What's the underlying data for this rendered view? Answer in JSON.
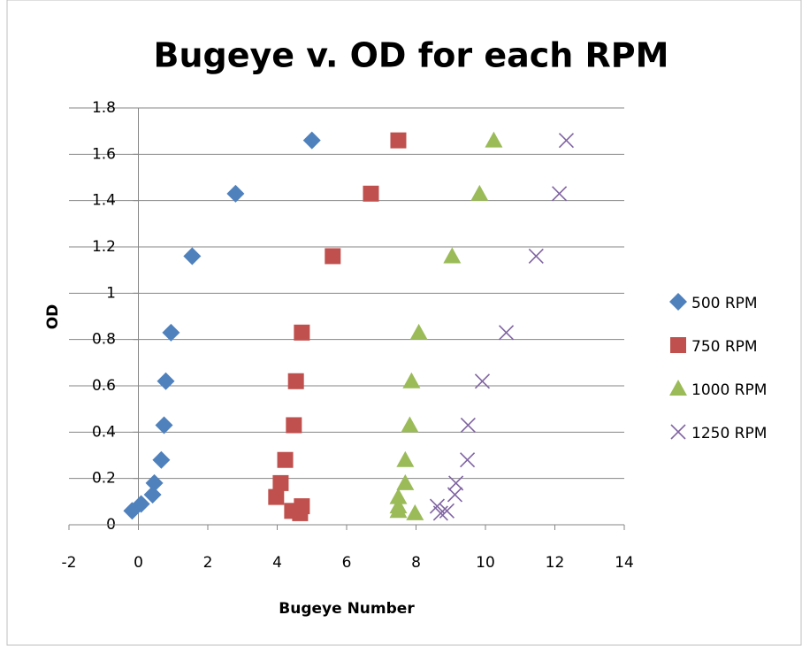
{
  "chart_data": {
    "type": "scatter",
    "title": "Bugeye v. OD for each RPM",
    "x_label": "Bugeye Number",
    "y_label": "OD",
    "xlim": [
      -2,
      14
    ],
    "xticks": [
      -2,
      0,
      2,
      4,
      6,
      8,
      10,
      12,
      14
    ],
    "ylim": [
      0,
      1.8
    ],
    "yticks": [
      0,
      0.2,
      0.4,
      0.6,
      0.8,
      1,
      1.2,
      1.4,
      1.6,
      1.8
    ],
    "grid": true,
    "legend": "right",
    "series": [
      {
        "name": "500 RPM",
        "color": "#4f81bd",
        "marker": "diamond",
        "x": [
          5.0,
          2.8,
          1.55,
          0.94,
          0.79,
          0.74,
          0.66,
          0.46,
          0.41,
          0.08,
          -0.18
        ],
        "values": [
          1.66,
          1.43,
          1.16,
          0.83,
          0.62,
          0.43,
          0.28,
          0.18,
          0.13,
          0.09,
          0.06
        ]
      },
      {
        "name": "750 RPM",
        "color": "#c0504d",
        "marker": "square",
        "x": [
          7.49,
          6.7,
          5.6,
          4.71,
          4.54,
          4.48,
          4.23,
          4.1,
          3.97,
          4.43,
          4.71,
          4.66
        ],
        "values": [
          1.66,
          1.43,
          1.16,
          0.83,
          0.62,
          0.43,
          0.28,
          0.18,
          0.12,
          0.06,
          0.08,
          0.05
        ]
      },
      {
        "name": "1000 RPM",
        "color": "#9bbb59",
        "marker": "triangle",
        "x": [
          10.24,
          9.83,
          9.04,
          8.08,
          7.87,
          7.82,
          7.69,
          7.69,
          7.49,
          7.49,
          7.49,
          7.97
        ],
        "values": [
          1.66,
          1.43,
          1.16,
          0.83,
          0.62,
          0.43,
          0.28,
          0.18,
          0.12,
          0.08,
          0.06,
          0.05
        ]
      },
      {
        "name": "1250 RPM",
        "color": "#8064a2",
        "marker": "x",
        "x": [
          12.33,
          12.13,
          11.46,
          10.6,
          9.91,
          9.5,
          9.48,
          9.15,
          9.12,
          8.61,
          8.89,
          8.71
        ],
        "values": [
          1.66,
          1.43,
          1.16,
          0.83,
          0.62,
          0.43,
          0.28,
          0.18,
          0.13,
          0.08,
          0.06,
          0.05
        ]
      }
    ]
  }
}
